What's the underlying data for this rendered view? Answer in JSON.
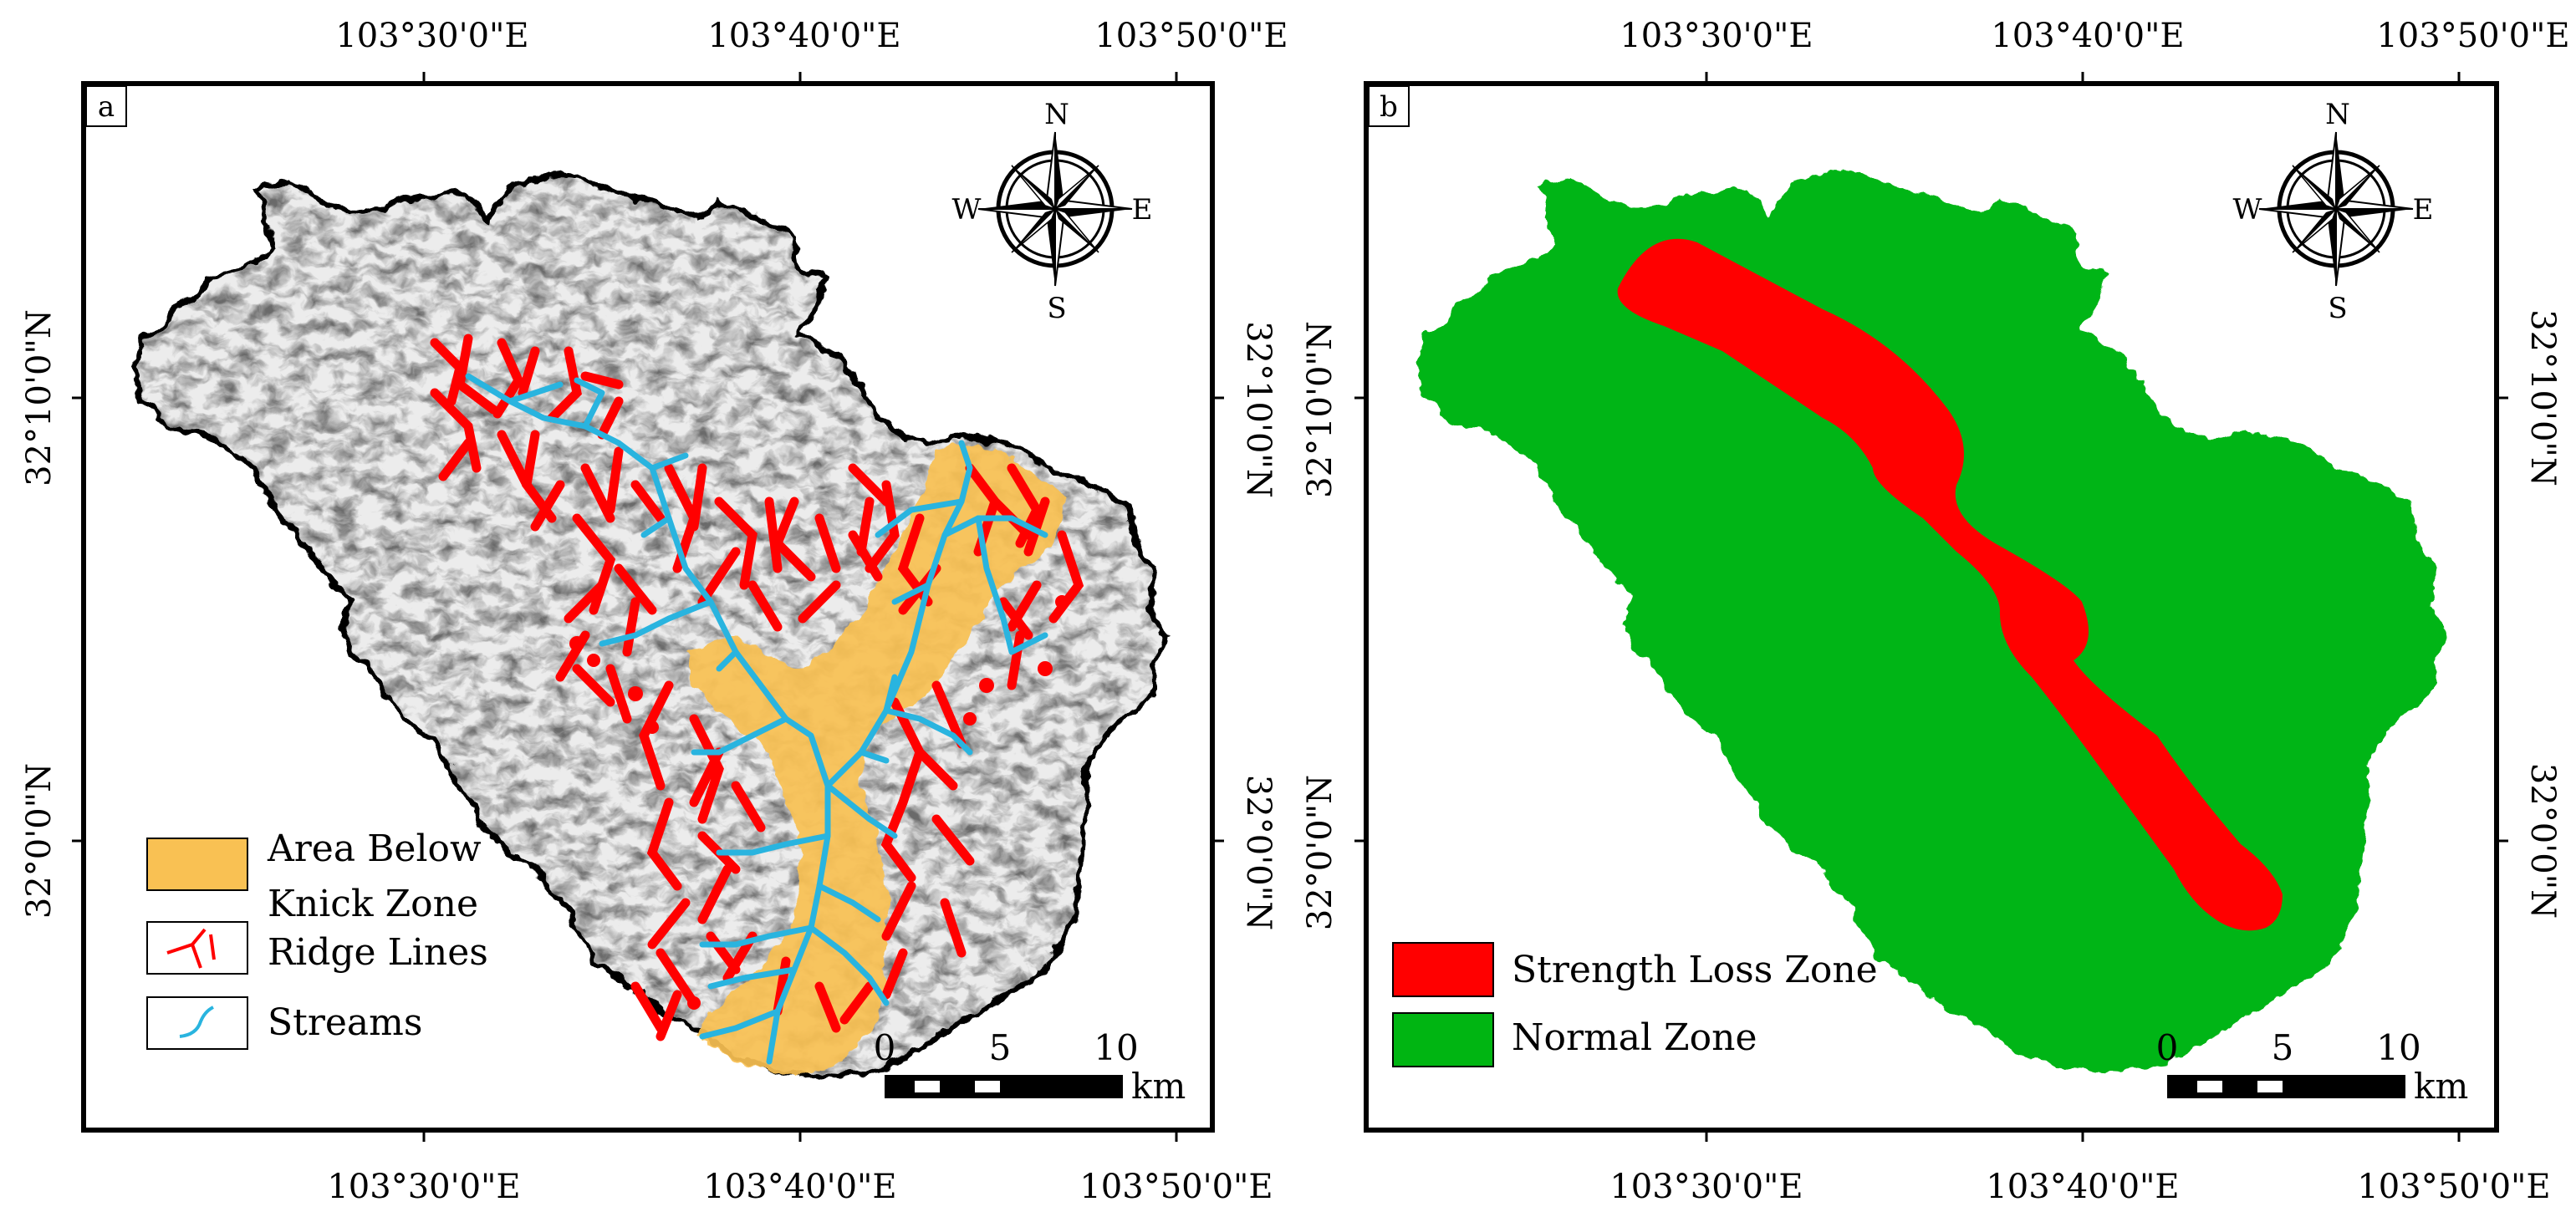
{
  "panels": [
    {
      "id": "a",
      "panel_label": "a",
      "top_lon_labels": [
        "103°30'0\"E",
        "103°40'0\"E",
        "103°50'0\"E"
      ],
      "bottom_lon_labels": [
        "103°30'0\"E",
        "103°40'0\"E",
        "103°50'0\"E"
      ],
      "left_lat_labels": [
        "32°10'0\"N",
        "32°0'0\"N"
      ],
      "right_lat_labels": [
        "32°10'0\"N",
        "32°0'0\"N"
      ],
      "compass": {
        "n": "N",
        "s": "S",
        "e": "E",
        "w": "W"
      },
      "scale_bar": {
        "ticks": [
          "0",
          "5",
          "10"
        ],
        "unit": "km"
      },
      "legend": {
        "area_below_line1": "Area Below",
        "area_below_line2": "Knick Zone",
        "ridge_lines": "Ridge Lines",
        "streams": "Streams"
      }
    },
    {
      "id": "b",
      "panel_label": "b",
      "top_lon_labels": [
        "103°30'0\"E",
        "103°40'0\"E",
        "103°50'0\"E"
      ],
      "bottom_lon_labels": [
        "103°30'0\"E",
        "103°40'0\"E",
        "103°50'0\"E"
      ],
      "left_lat_labels": [
        "32°10'0\"N",
        "32°0'0\"N"
      ],
      "right_lat_labels": [
        "32°10'0\"N",
        "32°0'0\"N"
      ],
      "compass": {
        "n": "N",
        "s": "S",
        "e": "E",
        "w": "W"
      },
      "scale_bar": {
        "ticks": [
          "0",
          "5",
          "10"
        ],
        "unit": "km"
      },
      "legend": {
        "strength_loss": "Strength Loss Zone",
        "normal": "Normal Zone"
      }
    }
  ],
  "colors": {
    "knick_zone": "#f9c153",
    "ridge": "#ff0000",
    "stream": "#29b4df",
    "strength_loss": "#ff0000",
    "normal": "#00b512",
    "hillshade": "#e4e4e4"
  }
}
